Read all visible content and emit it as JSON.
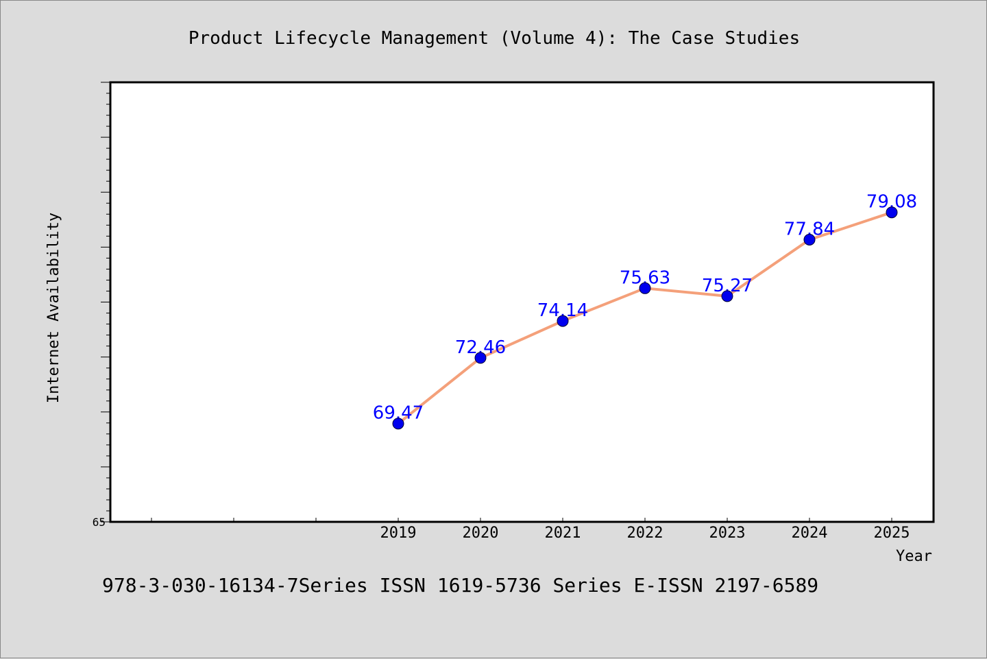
{
  "chart_data": {
    "type": "line",
    "title": "Product Lifecycle Management (Volume 4): The Case Studies",
    "xlabel": "Year",
    "ylabel": "Internet Availability",
    "categories": [
      "2019",
      "2020",
      "2021",
      "2022",
      "2023",
      "2024",
      "2025"
    ],
    "series": [
      {
        "values": [
          69.47,
          72.46,
          74.14,
          75.63,
          75.27,
          77.84,
          79.08
        ],
        "labels": [
          "69.47",
          "72.46",
          "74.14",
          "75.63",
          "75.27",
          "77.84",
          "79.08"
        ],
        "line_color": "#f4a07a",
        "marker_color": "#0000ee",
        "label_color": "#0000ff"
      }
    ],
    "ylim": [
      65,
      85
    ],
    "yticks": [
      "65"
    ],
    "grid": false,
    "background": "#dcdcdc",
    "plot_background": "#ffffff"
  },
  "footer": {
    "text": "978-3-030-16134-7Series ISSN 1619-5736 Series E-ISSN 2197-6589"
  }
}
